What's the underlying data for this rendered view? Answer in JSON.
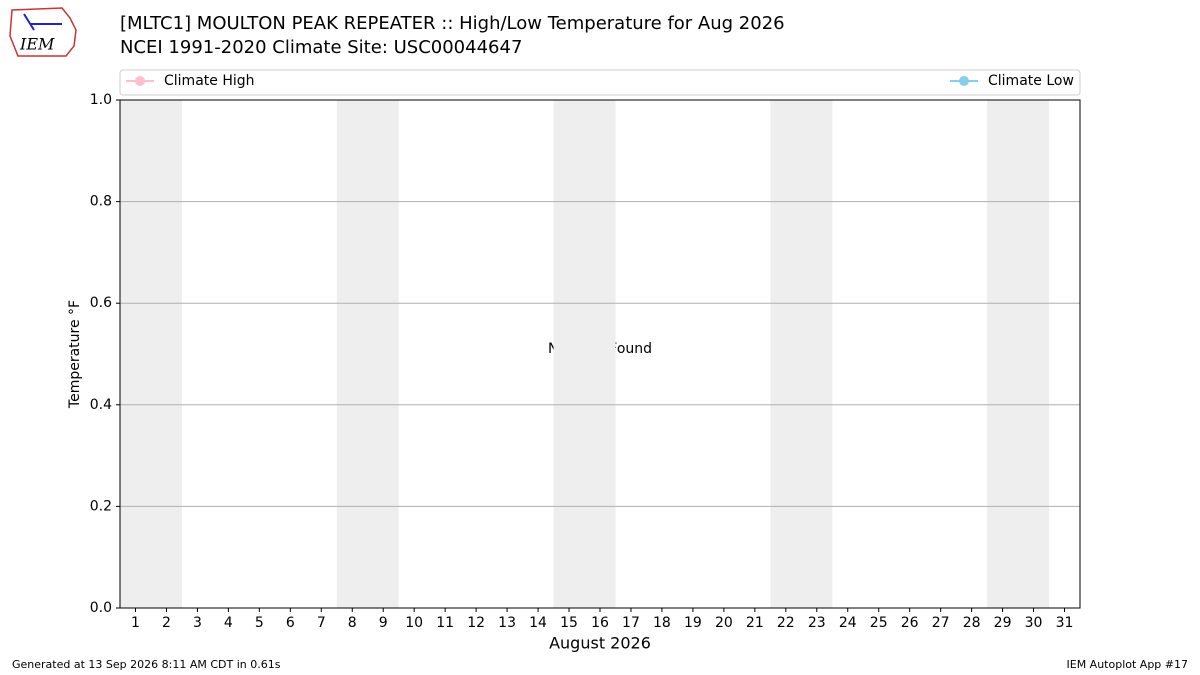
{
  "chart_data": {
    "type": "line",
    "title": "[MLTC1] MOULTON PEAK REPEATER :: High/Low Temperature for Aug 2026",
    "subtitle": "NCEI 1991-2020 Climate Site: USC00044647",
    "ylabel": "Temperature °F",
    "xlabel": "August 2026",
    "annotation": "No Data Found",
    "x": [
      1,
      2,
      3,
      4,
      5,
      6,
      7,
      8,
      9,
      10,
      11,
      12,
      13,
      14,
      15,
      16,
      17,
      18,
      19,
      20,
      21,
      22,
      23,
      24,
      25,
      26,
      27,
      28,
      29,
      30,
      31
    ],
    "xlim": [
      0.5,
      31.5
    ],
    "ylim": [
      0,
      1
    ],
    "yticks": [
      {
        "value": 0,
        "label": "0.0"
      },
      0.2,
      0.4,
      0.6,
      0.8,
      {
        "value": 1,
        "label": "1.0"
      }
    ],
    "grid": true,
    "weekend_bands": [
      [
        0.5,
        2.5
      ],
      [
        7.5,
        9.5
      ],
      [
        14.5,
        16.5
      ],
      [
        21.5,
        23.5
      ],
      [
        28.5,
        30.5
      ]
    ],
    "band_color": "#eeeeee",
    "series": [
      {
        "name": "Climate High",
        "color": "#ffc0cb",
        "values": [
          null,
          null,
          null,
          null,
          null,
          null,
          null,
          null,
          null,
          null,
          null,
          null,
          null,
          null,
          null,
          null,
          null,
          null,
          null,
          null,
          null,
          null,
          null,
          null,
          null,
          null,
          null,
          null,
          null,
          null,
          null
        ]
      },
      {
        "name": "Climate Low",
        "color": "#87ceeb",
        "values": [
          null,
          null,
          null,
          null,
          null,
          null,
          null,
          null,
          null,
          null,
          null,
          null,
          null,
          null,
          null,
          null,
          null,
          null,
          null,
          null,
          null,
          null,
          null,
          null,
          null,
          null,
          null,
          null,
          null,
          null,
          null
        ]
      }
    ],
    "footer_left": "Generated at 13 Sep 2026 8:11 AM CDT in 0.61s",
    "footer_right": "IEM Autoplot App #17",
    "logo_text": "IEM"
  }
}
